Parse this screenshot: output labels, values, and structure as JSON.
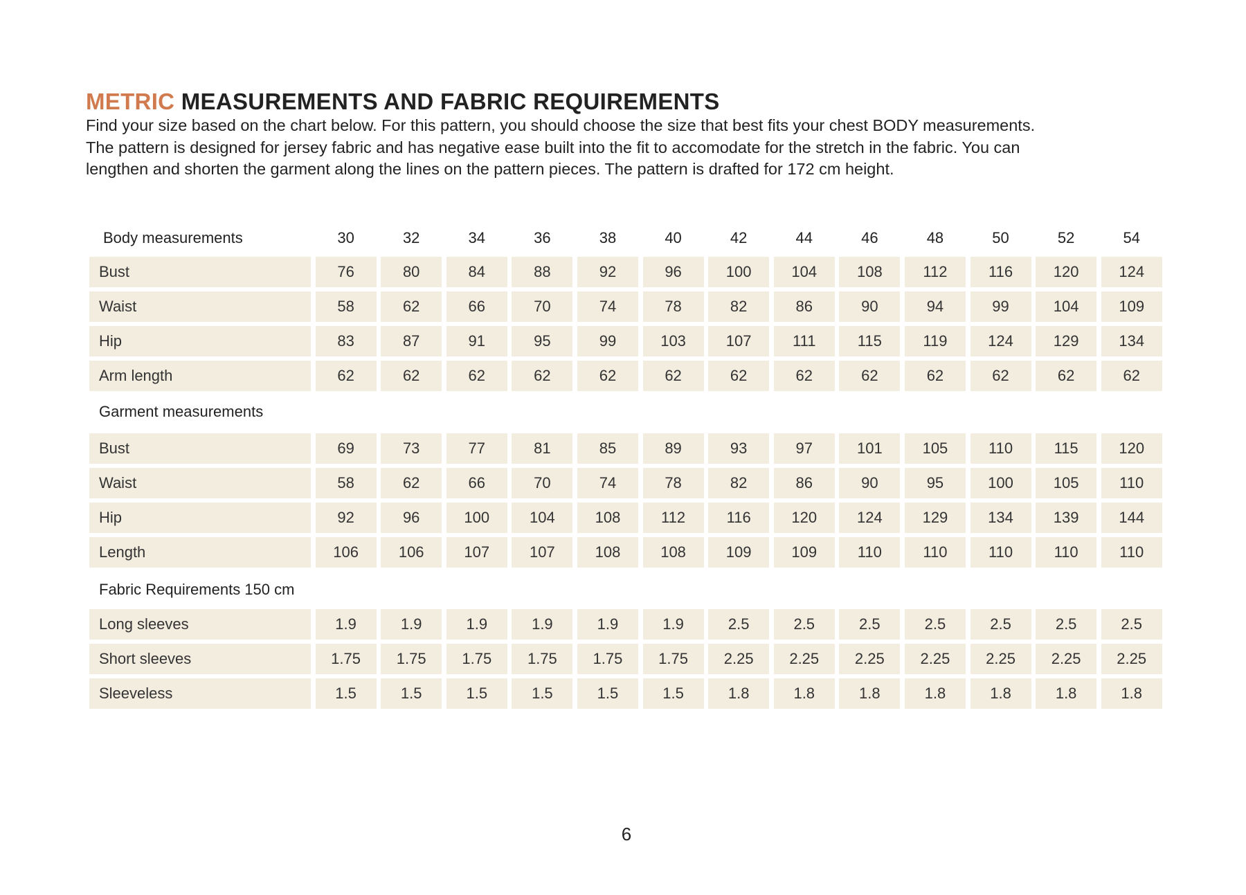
{
  "title": {
    "accent": "METRIC",
    "rest": "MEASUREMENTS AND FABRIC REQUIREMENTS"
  },
  "intro_lines": [
    "Find your size based on the chart below. For this pattern, you should choose the size that best fits your chest BODY measurements.",
    "The pattern is designed for jersey fabric and has negative ease built into the fit to accomodate for the stretch in the fabric. You can",
    "lengthen and shorten the garment along the lines on the pattern pieces. The pattern is drafted for 172 cm height."
  ],
  "colors": {
    "accent": "#d07a4e",
    "cell_background": "#f3ede0"
  },
  "sizes": [
    "30",
    "32",
    "34",
    "36",
    "38",
    "40",
    "42",
    "44",
    "46",
    "48",
    "50",
    "52",
    "54"
  ],
  "sections": [
    {
      "label": "Body measurements",
      "rows": [
        {
          "label": "Bust",
          "values": [
            "76",
            "80",
            "84",
            "88",
            "92",
            "96",
            "100",
            "104",
            "108",
            "112",
            "116",
            "120",
            "124"
          ]
        },
        {
          "label": "Waist",
          "values": [
            "58",
            "62",
            "66",
            "70",
            "74",
            "78",
            "82",
            "86",
            "90",
            "94",
            "99",
            "104",
            "109"
          ]
        },
        {
          "label": "Hip",
          "values": [
            "83",
            "87",
            "91",
            "95",
            "99",
            "103",
            "107",
            "111",
            "115",
            "119",
            "124",
            "129",
            "134"
          ]
        },
        {
          "label": "Arm length",
          "values": [
            "62",
            "62",
            "62",
            "62",
            "62",
            "62",
            "62",
            "62",
            "62",
            "62",
            "62",
            "62",
            "62"
          ]
        }
      ]
    },
    {
      "label": "Garment measurements",
      "rows": [
        {
          "label": "Bust",
          "values": [
            "69",
            "73",
            "77",
            "81",
            "85",
            "89",
            "93",
            "97",
            "101",
            "105",
            "110",
            "115",
            "120"
          ]
        },
        {
          "label": "Waist",
          "values": [
            "58",
            "62",
            "66",
            "70",
            "74",
            "78",
            "82",
            "86",
            "90",
            "95",
            "100",
            "105",
            "110"
          ]
        },
        {
          "label": "Hip",
          "values": [
            "92",
            "96",
            "100",
            "104",
            "108",
            "112",
            "116",
            "120",
            "124",
            "129",
            "134",
            "139",
            "144"
          ]
        },
        {
          "label": "Length",
          "values": [
            "106",
            "106",
            "107",
            "107",
            "108",
            "108",
            "109",
            "109",
            "110",
            "110",
            "110",
            "110",
            "110"
          ]
        }
      ]
    },
    {
      "label": "Fabric Requirements 150 cm",
      "rows": [
        {
          "label": "Long sleeves",
          "values": [
            "1.9",
            "1.9",
            "1.9",
            "1.9",
            "1.9",
            "1.9",
            "2.5",
            "2.5",
            "2.5",
            "2.5",
            "2.5",
            "2.5",
            "2.5"
          ]
        },
        {
          "label": "Short sleeves",
          "values": [
            "1.75",
            "1.75",
            "1.75",
            "1.75",
            "1.75",
            "1.75",
            "2.25",
            "2.25",
            "2.25",
            "2.25",
            "2.25",
            "2.25",
            "2.25"
          ]
        },
        {
          "label": "Sleeveless",
          "values": [
            "1.5",
            "1.5",
            "1.5",
            "1.5",
            "1.5",
            "1.5",
            "1.8",
            "1.8",
            "1.8",
            "1.8",
            "1.8",
            "1.8",
            "1.8"
          ]
        }
      ]
    }
  ],
  "page_number": "6"
}
